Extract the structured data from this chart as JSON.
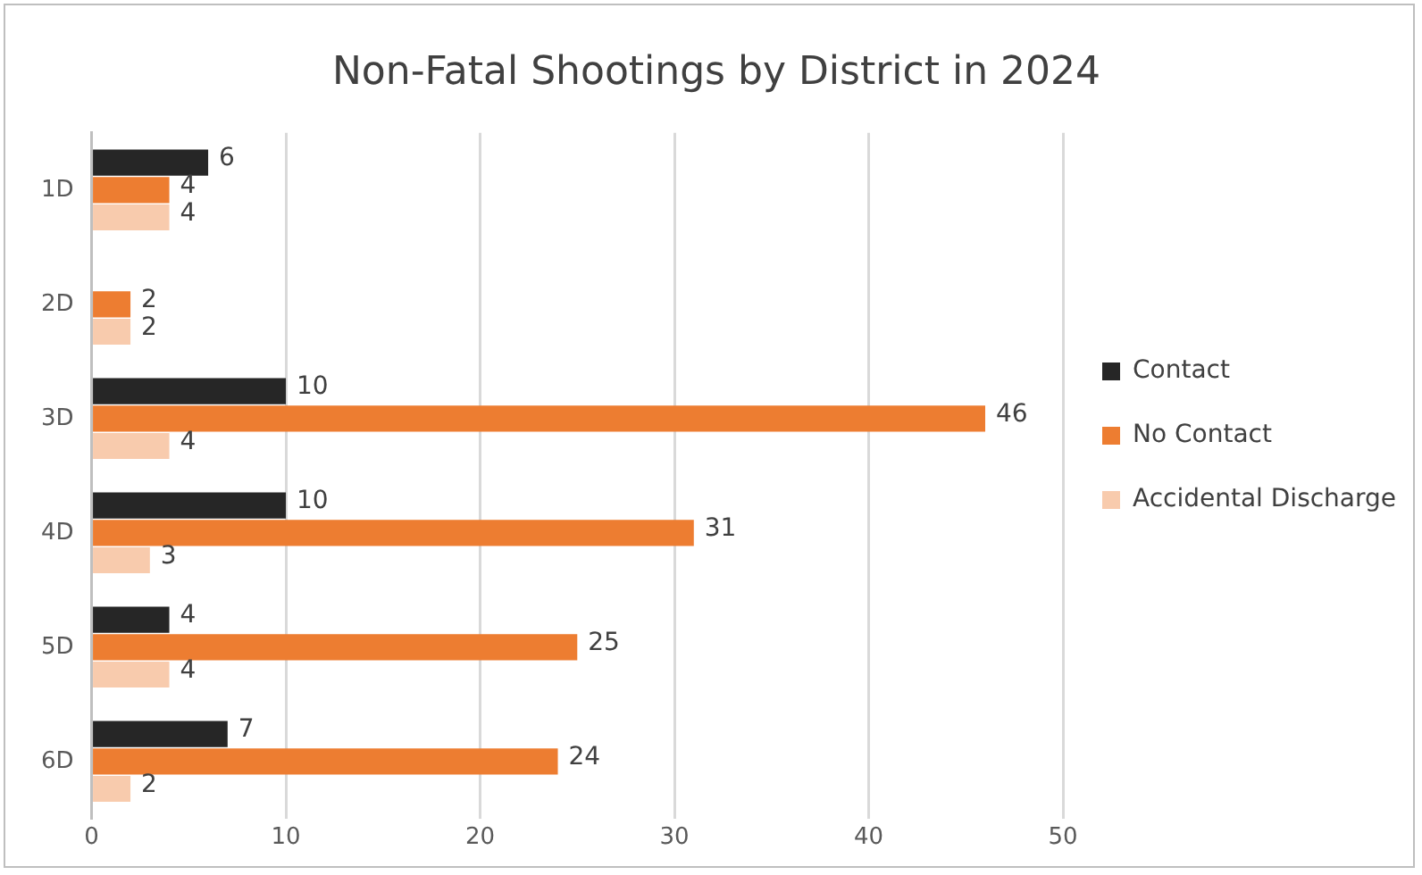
{
  "chart_data": {
    "type": "bar",
    "orientation": "horizontal",
    "title": "Non-Fatal Shootings by District in 2024",
    "categories": [
      "1D",
      "2D",
      "3D",
      "4D",
      "5D",
      "6D"
    ],
    "series": [
      {
        "name": "Contact",
        "color": "#262626",
        "values": [
          6,
          null,
          10,
          10,
          4,
          7
        ]
      },
      {
        "name": "No Contact",
        "color": "#ed7d31",
        "values": [
          4,
          2,
          46,
          31,
          25,
          24
        ]
      },
      {
        "name": "Accidental Discharge",
        "color": "#f8cbad",
        "values": [
          4,
          2,
          4,
          3,
          4,
          2
        ]
      }
    ],
    "xlim": [
      0,
      50
    ],
    "xticks": [
      0,
      10,
      20,
      30,
      40,
      50
    ],
    "grid": "x",
    "legend": "right",
    "data_labels": true
  }
}
